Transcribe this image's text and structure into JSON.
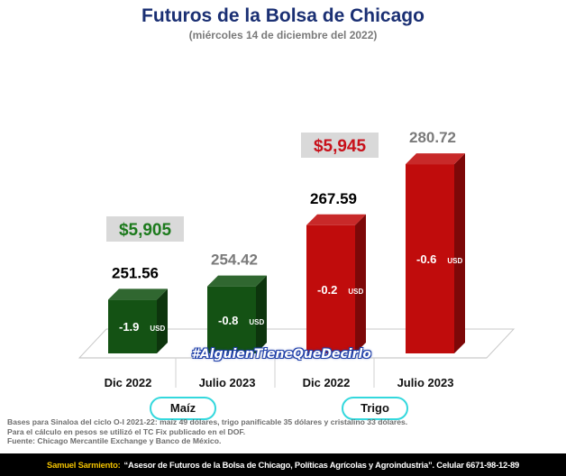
{
  "header": {
    "title": "Futuros de la Bolsa de Chicago",
    "subtitle": "(miércoles 14 de diciembre del 2022)"
  },
  "chart_data": {
    "type": "bar",
    "categories": [
      "Dic 2022",
      "Julio 2023",
      "Dic 2022",
      "Julio 2023"
    ],
    "groups": [
      {
        "label": "Maíz",
        "categories": [
          "Dic 2022",
          "Julio 2023"
        ]
      },
      {
        "label": "Trigo",
        "categories": [
          "Dic 2022",
          "Julio 2023"
        ]
      }
    ],
    "values": [
      251.56,
      254.42,
      267.59,
      280.72
    ],
    "value_labels": [
      "251.56",
      "254.42",
      "267.59",
      "280.72"
    ],
    "changes": [
      "-1.9",
      "-0.8",
      "-0.2",
      "-0.6"
    ],
    "change_unit": "USD",
    "group_prices": [
      {
        "group": "Maíz",
        "label": "$5,905",
        "color": "#1c7a1c"
      },
      {
        "group": "Trigo",
        "label": "$5,945",
        "color": "#c8101a"
      }
    ],
    "colors": {
      "maiz": "#145214",
      "trigo": "#c00c0c"
    },
    "value_label_colors": [
      "#000000",
      "#7a7a7a",
      "#000000",
      "#7a7a7a"
    ],
    "ylim": [
      240,
      285
    ],
    "grid": false,
    "legend": "none"
  },
  "watermark": "#AlguienTieneQueDecirlo",
  "footnotes": [
    "Bases para Sinaloa del ciclo O-I 2021-22: maíz 49 dólares, trigo panificable 35 dólares y cristalino 33 dólares.",
    "Para el cálculo en pesos se utilizó el TC Fix publicado en el DOF.",
    "Fuente: Chicago Mercantile Exchange y Banco de México."
  ],
  "footer": {
    "name": "Samuel Sarmiento:",
    "description": "“Asesor de Futuros de la Bolsa de Chicago, Políticas Agrícolas y Agroindustria”. Celular 6671-98-12-89"
  }
}
